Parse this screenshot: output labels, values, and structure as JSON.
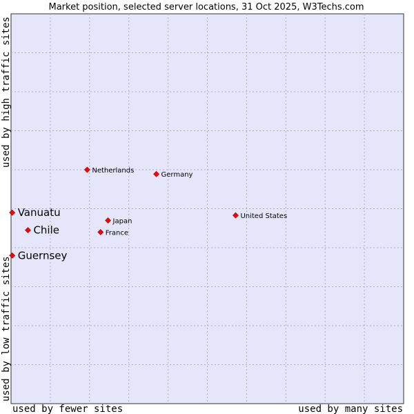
{
  "chart_data": {
    "type": "scatter",
    "title": "Market position, selected server locations, 31 Oct 2025, W3Techs.com",
    "xlabel_left": "used by fewer sites",
    "xlabel_right": "used by many sites",
    "ylabel_bottom": "used by low traffic sites",
    "ylabel_top": "used by high traffic sites",
    "xlim": [
      0,
      10
    ],
    "ylim": [
      0,
      10
    ],
    "grid": true,
    "points": [
      {
        "name": "Vanuatu",
        "x": 0.03,
        "y": 4.9,
        "emphasis": true
      },
      {
        "name": "Chile",
        "x": 0.43,
        "y": 4.45,
        "emphasis": true
      },
      {
        "name": "Guernsey",
        "x": 0.03,
        "y": 3.8,
        "emphasis": true
      },
      {
        "name": "Netherlands",
        "x": 1.94,
        "y": 6.0,
        "emphasis": false
      },
      {
        "name": "Germany",
        "x": 3.7,
        "y": 5.89,
        "emphasis": false
      },
      {
        "name": "Japan",
        "x": 2.47,
        "y": 4.7,
        "emphasis": false
      },
      {
        "name": "France",
        "x": 2.28,
        "y": 4.4,
        "emphasis": false
      },
      {
        "name": "United States",
        "x": 5.72,
        "y": 4.83,
        "emphasis": false
      }
    ]
  },
  "colors": {
    "plot_bg": "#e6e6fa",
    "grid": "#aaaacc",
    "frame": "#333333",
    "marker": "#ff0000"
  }
}
